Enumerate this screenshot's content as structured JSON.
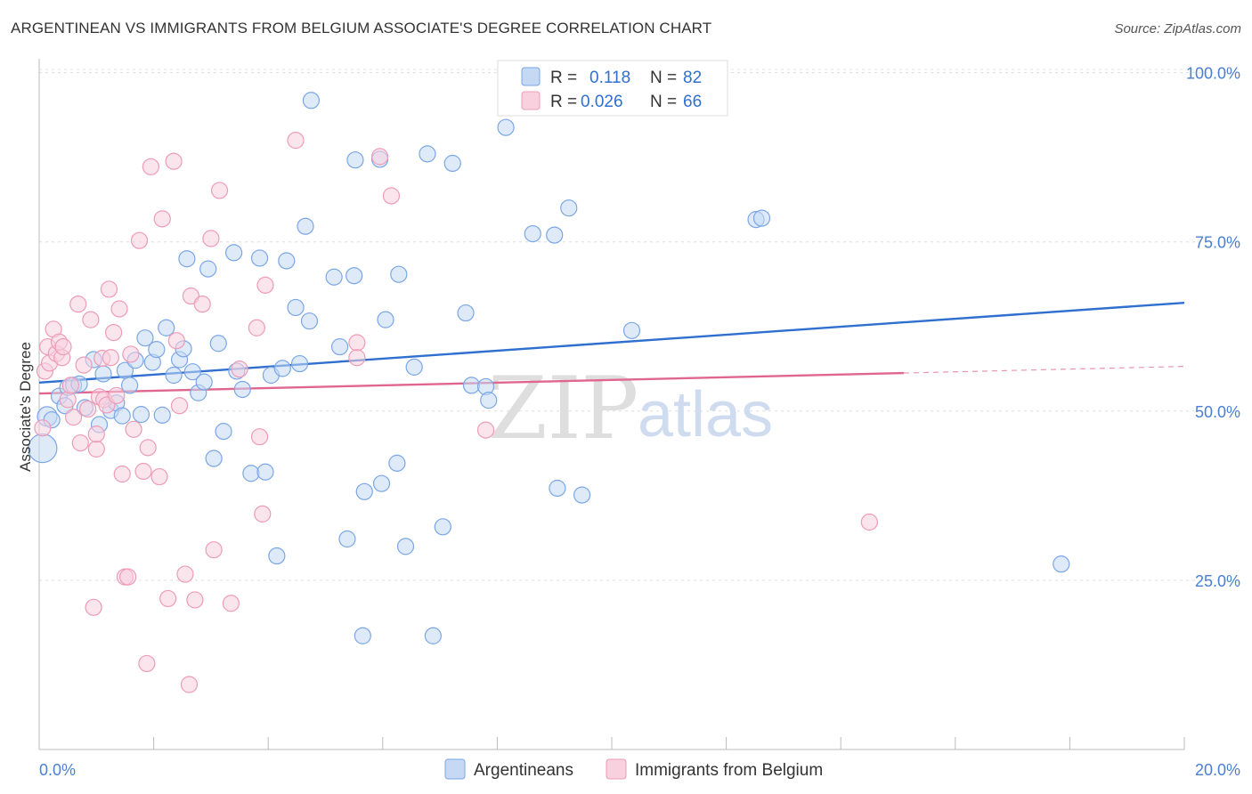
{
  "chart_data": {
    "type": "scatter",
    "title": "ARGENTINEAN VS IMMIGRANTS FROM BELGIUM ASSOCIATE'S DEGREE CORRELATION CHART",
    "source": "Source: ZipAtlas.com",
    "xlabel": "",
    "ylabel": "Associate's Degree",
    "xlim": [
      0,
      20
    ],
    "ylim": [
      0,
      101
    ],
    "x_ticks": [
      0,
      2,
      4,
      6,
      8,
      10,
      12,
      14,
      16,
      18,
      20
    ],
    "x_tick_labels": [
      {
        "value": 0,
        "label": "0.0%"
      },
      {
        "value": 20,
        "label": "20.0%"
      }
    ],
    "y_gridlines": [
      25,
      50,
      75,
      100
    ],
    "y_tick_labels": [
      {
        "value": 100,
        "label": "100.0%"
      },
      {
        "value": 75,
        "label": "75.0%"
      },
      {
        "value": 50,
        "label": "50.0%"
      },
      {
        "value": 25,
        "label": "25.0%"
      }
    ],
    "watermark": {
      "zip": "ZIP",
      "atlas": "atlas"
    },
    "stats_legend": [
      {
        "series": "Argentineans",
        "r_label": "R =",
        "r_value": "0.118",
        "n_label": "N =",
        "n_value": "82"
      },
      {
        "series": "Immigrants from Belgium",
        "r_label": "R =",
        "r_value": "0.026",
        "n_label": "N =",
        "n_value": "66"
      }
    ],
    "series": [
      {
        "name": "Argentineans",
        "color": "#7aa6e6",
        "fill": "#c5d8f4",
        "line_color": "#2f6fd0",
        "trend": {
          "x0": 0.0,
          "y0": 54.2,
          "x1": 20.0,
          "y1": 66.0,
          "solid_to": 20.0
        },
        "points": [
          [
            0.06,
            44.5,
            16
          ],
          [
            0.14,
            49.2,
            11
          ],
          [
            0.22,
            48.7,
            9
          ],
          [
            0.35,
            52.2,
            9
          ],
          [
            0.45,
            50.8,
            9
          ],
          [
            0.5,
            53.5,
            9
          ],
          [
            0.6,
            53.8,
            9
          ],
          [
            0.7,
            54.0,
            9
          ],
          [
            0.8,
            50.5,
            9
          ],
          [
            0.95,
            57.6,
            9
          ],
          [
            1.05,
            48.0,
            9
          ],
          [
            1.12,
            55.5,
            9
          ],
          [
            1.25,
            50.1,
            9
          ],
          [
            1.35,
            51.2,
            9
          ],
          [
            1.45,
            49.3,
            9
          ],
          [
            1.5,
            56.0,
            9
          ],
          [
            1.58,
            53.8,
            9
          ],
          [
            1.68,
            57.5,
            9
          ],
          [
            1.78,
            49.5,
            9
          ],
          [
            1.85,
            60.8,
            9
          ],
          [
            1.98,
            57.2,
            9
          ],
          [
            2.05,
            59.1,
            9
          ],
          [
            2.15,
            49.4,
            9
          ],
          [
            2.22,
            62.3,
            9
          ],
          [
            2.35,
            55.3,
            9
          ],
          [
            2.45,
            57.6,
            9
          ],
          [
            2.52,
            59.2,
            9
          ],
          [
            2.58,
            72.5,
            9
          ],
          [
            2.68,
            55.8,
            9
          ],
          [
            2.78,
            52.7,
            9
          ],
          [
            2.88,
            54.3,
            9
          ],
          [
            2.95,
            71.0,
            9
          ],
          [
            3.13,
            60.0,
            9
          ],
          [
            3.22,
            47.0,
            9
          ],
          [
            3.4,
            73.4,
            9
          ],
          [
            3.45,
            55.9,
            9
          ],
          [
            3.55,
            53.2,
            9
          ],
          [
            3.05,
            43.0,
            9
          ],
          [
            3.7,
            40.8,
            9
          ],
          [
            3.85,
            72.6,
            9
          ],
          [
            3.95,
            41.0,
            9
          ],
          [
            4.05,
            55.3,
            9
          ],
          [
            4.15,
            28.6,
            9
          ],
          [
            4.25,
            56.3,
            9
          ],
          [
            4.32,
            72.2,
            9
          ],
          [
            4.48,
            65.3,
            9
          ],
          [
            4.55,
            57.0,
            9
          ],
          [
            4.65,
            77.3,
            9
          ],
          [
            4.72,
            63.3,
            9
          ],
          [
            4.75,
            95.9,
            9
          ],
          [
            5.15,
            69.8,
            9
          ],
          [
            5.25,
            59.5,
            9
          ],
          [
            5.38,
            31.1,
            9
          ],
          [
            5.5,
            70.0,
            9
          ],
          [
            5.52,
            87.1,
            9
          ],
          [
            5.65,
            16.8,
            9
          ],
          [
            5.68,
            38.1,
            9
          ],
          [
            5.95,
            87.2,
            9
          ],
          [
            5.98,
            39.3,
            9
          ],
          [
            6.05,
            63.5,
            9
          ],
          [
            6.25,
            42.3,
            9
          ],
          [
            6.28,
            70.2,
            9
          ],
          [
            6.4,
            30.0,
            9
          ],
          [
            6.55,
            56.5,
            9
          ],
          [
            6.78,
            88.0,
            9
          ],
          [
            6.88,
            16.8,
            9
          ],
          [
            7.05,
            32.9,
            9
          ],
          [
            7.22,
            86.6,
            9
          ],
          [
            7.45,
            64.5,
            9
          ],
          [
            7.55,
            53.8,
            9
          ],
          [
            7.8,
            53.6,
            9
          ],
          [
            7.85,
            51.6,
            9
          ],
          [
            8.15,
            91.9,
            9
          ],
          [
            9.0,
            76.0,
            9
          ],
          [
            9.05,
            38.6,
            9
          ],
          [
            9.25,
            80.0,
            9
          ],
          [
            9.48,
            37.6,
            9
          ],
          [
            10.35,
            61.9,
            9
          ],
          [
            12.52,
            78.3,
            9
          ],
          [
            12.62,
            78.5,
            9
          ],
          [
            17.85,
            27.4,
            9
          ],
          [
            8.62,
            76.2,
            9
          ]
        ]
      },
      {
        "name": "Immigrants from Belgium",
        "color": "#ee9bb7",
        "fill": "#f8d0de",
        "line_color": "#e0668f",
        "trend": {
          "x0": 0.0,
          "y0": 52.6,
          "x1": 20.0,
          "y1": 56.6,
          "solid_to": 15.1
        },
        "points": [
          [
            0.06,
            47.5,
            9
          ],
          [
            0.1,
            55.9,
            9
          ],
          [
            0.15,
            59.5,
            9
          ],
          [
            0.18,
            57.1,
            9
          ],
          [
            0.25,
            62.1,
            9
          ],
          [
            0.3,
            58.5,
            9
          ],
          [
            0.35,
            60.2,
            9
          ],
          [
            0.4,
            57.9,
            9
          ],
          [
            0.42,
            59.5,
            9
          ],
          [
            0.5,
            51.7,
            9
          ],
          [
            0.55,
            53.8,
            9
          ],
          [
            0.6,
            49.1,
            9
          ],
          [
            0.68,
            65.8,
            9
          ],
          [
            0.72,
            45.3,
            9
          ],
          [
            0.78,
            56.8,
            9
          ],
          [
            0.85,
            50.3,
            9
          ],
          [
            0.9,
            63.5,
            9
          ],
          [
            0.95,
            21.0,
            9
          ],
          [
            1.0,
            44.4,
            9
          ],
          [
            1.0,
            46.6,
            9
          ],
          [
            1.05,
            52.1,
            9
          ],
          [
            1.1,
            57.8,
            9
          ],
          [
            1.13,
            51.7,
            9
          ],
          [
            1.18,
            50.9,
            9
          ],
          [
            1.22,
            68.0,
            9
          ],
          [
            1.25,
            57.9,
            9
          ],
          [
            1.3,
            61.6,
            9
          ],
          [
            1.35,
            52.3,
            9
          ],
          [
            1.4,
            65.1,
            9
          ],
          [
            1.45,
            40.7,
            9
          ],
          [
            1.5,
            25.5,
            9
          ],
          [
            1.55,
            25.5,
            9
          ],
          [
            1.6,
            58.4,
            9
          ],
          [
            1.65,
            47.3,
            9
          ],
          [
            1.75,
            75.2,
            9
          ],
          [
            1.82,
            41.1,
            9
          ],
          [
            1.88,
            12.7,
            9
          ],
          [
            1.9,
            44.6,
            9
          ],
          [
            1.95,
            86.1,
            9
          ],
          [
            2.1,
            40.3,
            9
          ],
          [
            2.15,
            78.4,
            9
          ],
          [
            2.25,
            22.3,
            9
          ],
          [
            2.35,
            86.9,
            9
          ],
          [
            2.4,
            60.4,
            9
          ],
          [
            2.45,
            50.8,
            9
          ],
          [
            2.55,
            25.9,
            9
          ],
          [
            2.62,
            9.6,
            9
          ],
          [
            2.65,
            67.0,
            9
          ],
          [
            2.72,
            22.1,
            9
          ],
          [
            2.85,
            65.8,
            9
          ],
          [
            3.0,
            75.5,
            9
          ],
          [
            3.05,
            29.5,
            9
          ],
          [
            3.15,
            82.6,
            9
          ],
          [
            3.35,
            21.6,
            9
          ],
          [
            3.5,
            56.2,
            9
          ],
          [
            3.8,
            62.3,
            9
          ],
          [
            3.85,
            46.2,
            9
          ],
          [
            3.9,
            34.8,
            9
          ],
          [
            3.95,
            68.6,
            9
          ],
          [
            4.48,
            90.0,
            9
          ],
          [
            5.55,
            60.1,
            9
          ],
          [
            5.55,
            57.9,
            9
          ],
          [
            5.95,
            87.6,
            9
          ],
          [
            6.15,
            81.8,
            9
          ],
          [
            7.8,
            47.2,
            9
          ],
          [
            14.5,
            33.6,
            9
          ]
        ]
      }
    ]
  }
}
